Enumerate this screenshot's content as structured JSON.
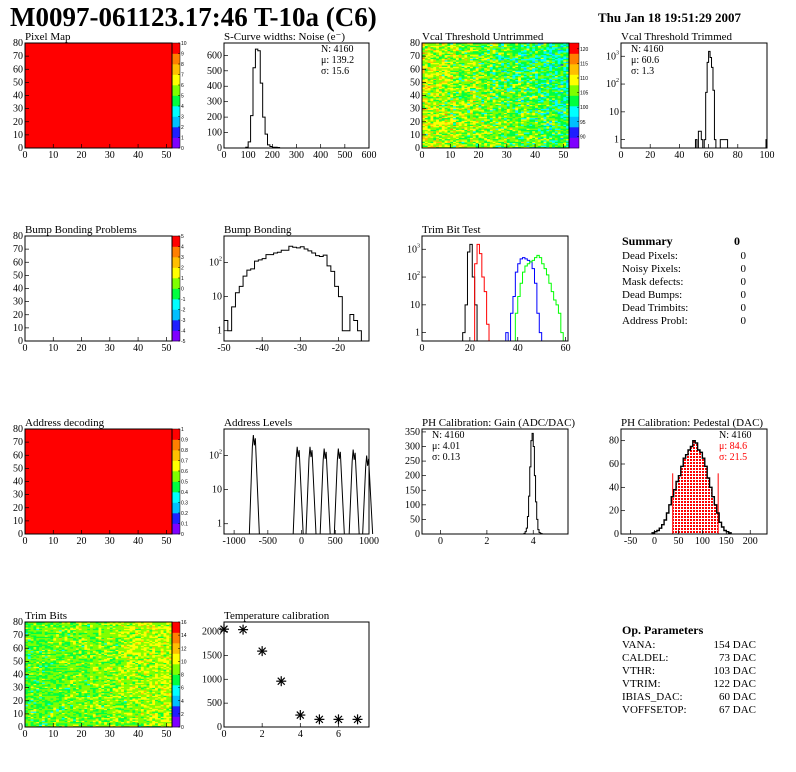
{
  "header": {
    "title": "M0097-061123.17:46 T-10a (C6)",
    "date": "Thu Jan 18 19:51:29 2007"
  },
  "summary": {
    "title": "Summary",
    "total": "0",
    "rows": [
      {
        "label": "Dead Pixels:",
        "value": "0"
      },
      {
        "label": "Noisy Pixels:",
        "value": "0"
      },
      {
        "label": "Mask defects:",
        "value": "0"
      },
      {
        "label": "Dead Bumps:",
        "value": "0"
      },
      {
        "label": "Dead Trimbits:",
        "value": "0"
      },
      {
        "label": "Address Probl:",
        "value": "0"
      }
    ]
  },
  "op_parameters": {
    "title": "Op. Parameters",
    "rows": [
      {
        "label": "VANA:",
        "value": "154 DAC"
      },
      {
        "label": "CALDEL:",
        "value": "73 DAC"
      },
      {
        "label": "VTHR:",
        "value": "103 DAC"
      },
      {
        "label": "VTRIM:",
        "value": "122 DAC"
      },
      {
        "label": "IBIAS_DAC:",
        "value": "60 DAC"
      },
      {
        "label": "VOFFSETOP:",
        "value": "67 DAC"
      }
    ]
  },
  "colors": {
    "palette": [
      "#7f00ff",
      "#1f1fff",
      "#00bfff",
      "#00ffff",
      "#00ff3f",
      "#7fff00",
      "#ffff00",
      "#ffbf00",
      "#ff7f00",
      "#ff0000"
    ],
    "red": "#ff0000",
    "green": "#00ff00",
    "blue": "#0000ff",
    "black": "#000000"
  },
  "chart_data": [
    {
      "id": "pixel-map",
      "type": "heatmap",
      "title": "Pixel Map",
      "xlim": [
        0,
        52
      ],
      "ylim": [
        0,
        80
      ],
      "xticks": [
        0,
        10,
        20,
        30,
        40,
        50
      ],
      "yticks": [
        0,
        10,
        20,
        30,
        40,
        50,
        60,
        70,
        80
      ],
      "zlim": [
        0,
        10
      ],
      "zticks": [
        0,
        1,
        2,
        3,
        4,
        5,
        6,
        7,
        8,
        9,
        10
      ],
      "fill": "uniform",
      "z_value": 10
    },
    {
      "id": "scurve-noise",
      "type": "bar",
      "title": "S-Curve widths: Noise (e⁻)",
      "xlim": [
        0,
        600
      ],
      "ylim": [
        0,
        680
      ],
      "xticks": [
        0,
        100,
        200,
        300,
        400,
        500,
        600
      ],
      "yticks": [
        0,
        100,
        200,
        300,
        400,
        500,
        600
      ],
      "bins": {
        "start": 90,
        "width": 10,
        "series": [
          {
            "color": "#000000",
            "values": [
              5,
              40,
              210,
              520,
              640,
              630,
              420,
              200,
              90,
              20,
              10,
              5,
              5,
              3
            ]
          }
        ]
      },
      "stats": {
        "pos": "top-right",
        "lines": [
          {
            "text": "N: 4160"
          },
          {
            "text": "μ: 139.2"
          },
          {
            "text": "σ: 15.6"
          }
        ]
      }
    },
    {
      "id": "vcal-untrimmed",
      "type": "heatmap",
      "title": "Vcal Threshold Untrimmed",
      "xlim": [
        0,
        52
      ],
      "ylim": [
        0,
        80
      ],
      "xticks": [
        0,
        10,
        20,
        30,
        40,
        50
      ],
      "yticks": [
        0,
        10,
        20,
        30,
        40,
        50,
        60,
        70,
        80
      ],
      "zlim": [
        86,
        122
      ],
      "zticks": [
        90,
        95,
        100,
        105,
        110,
        115,
        120
      ],
      "fill": "noise",
      "z_left": 108,
      "z_right": 100,
      "z_spread": 5
    },
    {
      "id": "vcal-trimmed",
      "type": "bar",
      "title": "Vcal Threshold Trimmed",
      "xlim": [
        0,
        100
      ],
      "ylog": true,
      "ylim": [
        0.5,
        3000
      ],
      "xticks": [
        0,
        20,
        40,
        60,
        80,
        100
      ],
      "yticks": [
        1,
        10,
        100,
        1000
      ],
      "bins": {
        "start": 50,
        "width": 1,
        "series": [
          {
            "color": "#000000",
            "values": [
              0,
              1,
              0,
              2,
              2,
              1,
              0,
              1,
              50,
              600,
              1500,
              900,
              400,
              60,
              1,
              0,
              0,
              0,
              1,
              1,
              1,
              1,
              1,
              0
            ]
          }
        ]
      },
      "extra_bins": [
        {
          "x": 100,
          "value": 1
        }
      ],
      "stats": {
        "pos": "top-left",
        "lines": [
          {
            "text": "N: 4160"
          },
          {
            "text": "μ: 60.6"
          },
          {
            "text": "σ:  1.3"
          }
        ]
      }
    },
    {
      "id": "bump-bonding-problems",
      "type": "heatmap",
      "title": "Bump Bonding Problems",
      "xlim": [
        0,
        52
      ],
      "ylim": [
        0,
        80
      ],
      "xticks": [
        0,
        10,
        20,
        30,
        40,
        50
      ],
      "yticks": [
        0,
        10,
        20,
        30,
        40,
        50,
        60,
        70,
        80
      ],
      "zlim": [
        -5,
        5
      ],
      "zticks": [
        -5,
        -4,
        -3,
        -2,
        -1,
        0,
        1,
        2,
        3,
        4,
        5
      ],
      "fill": "empty"
    },
    {
      "id": "bump-bonding",
      "type": "bar",
      "title": "Bump Bonding",
      "xlim": [
        -50,
        -12
      ],
      "ylog": true,
      "ylim": [
        0.5,
        600
      ],
      "xticks": [
        -50,
        -40,
        -30,
        -20
      ],
      "yticks": [
        1,
        10,
        100
      ],
      "bins": {
        "start": -50,
        "width": 1,
        "series": [
          {
            "color": "#000000",
            "values": [
              2,
              1,
              5,
              13,
              20,
              40,
              60,
              65,
              110,
              120,
              130,
              170,
              170,
              190,
              200,
              230,
              230,
              300,
              280,
              270,
              290,
              250,
              220,
              190,
              160,
              150,
              165,
              80,
              55,
              20,
              10,
              1,
              1,
              3,
              2,
              1
            ]
          }
        ]
      }
    },
    {
      "id": "trim-bit-test",
      "type": "bar",
      "title": "Trim Bit Test",
      "xlim": [
        0,
        61
      ],
      "ylog": true,
      "ylim": [
        0.5,
        3000
      ],
      "xticks": [
        0,
        20,
        40,
        60
      ],
      "yticks": [
        1,
        10,
        100,
        1000
      ],
      "bins": {
        "start": 17,
        "width": 1,
        "series": [
          {
            "color": "#000000",
            "values": [
              1,
              10,
              800,
              1500,
              100,
              10
            ]
          },
          {
            "color": "#ff0000",
            "values": [
              0,
              0,
              0,
              0,
              0,
              300,
              1500,
              700,
              100,
              30,
              2
            ]
          },
          {
            "color": "#0000ff",
            "values": [
              0,
              0,
              0,
              0,
              0,
              0,
              0,
              0,
              0,
              0,
              0,
              0,
              0,
              0,
              0,
              0,
              0,
              0,
              1,
              0,
              5,
              20,
              150,
              300,
              450,
              500,
              450,
              400,
              350,
              200,
              60,
              5,
              1
            ]
          },
          {
            "color": "#00ff00",
            "values": [
              0,
              0,
              0,
              0,
              0,
              0,
              0,
              0,
              0,
              0,
              0,
              0,
              0,
              0,
              0,
              0,
              0,
              0,
              0,
              0,
              0,
              0,
              5,
              20,
              60,
              150,
              250,
              300,
              350,
              400,
              500,
              600,
              500,
              300,
              200,
              120,
              60,
              30,
              15,
              10,
              5,
              1
            ]
          }
        ]
      }
    },
    {
      "id": "address-decoding",
      "type": "heatmap",
      "title": "Address decoding",
      "xlim": [
        0,
        52
      ],
      "ylim": [
        0,
        80
      ],
      "xticks": [
        0,
        10,
        20,
        30,
        40,
        50
      ],
      "yticks": [
        0,
        10,
        20,
        30,
        40,
        50,
        60,
        70,
        80
      ],
      "zlim": [
        0,
        1
      ],
      "zticks": [
        0,
        0.1,
        0.2,
        0.3,
        0.4,
        0.5,
        0.6,
        0.7,
        0.8,
        0.9,
        1
      ],
      "fill": "uniform",
      "z_value": 1
    },
    {
      "id": "address-levels",
      "type": "bar",
      "title": "Address Levels",
      "xlim": [
        -1150,
        1000
      ],
      "ylog": true,
      "ylim": [
        0.5,
        600
      ],
      "xticks": [
        -1000,
        -500,
        0,
        500,
        1000
      ],
      "yticks": [
        1,
        10,
        100
      ],
      "peaks": [
        {
          "x": -700,
          "value": 400
        },
        {
          "x": -50,
          "value": 180
        },
        {
          "x": 140,
          "value": 180
        },
        {
          "x": 350,
          "value": 160
        },
        {
          "x": 560,
          "value": 160
        },
        {
          "x": 780,
          "value": 150
        },
        {
          "x": 980,
          "value": 100
        }
      ]
    },
    {
      "id": "ph-gain",
      "type": "bar",
      "title": "PH Calibration: Gain (ADC/DAC)",
      "xlim": [
        -0.8,
        5.5
      ],
      "ylim": [
        0,
        360
      ],
      "xticks": [
        0,
        2,
        4
      ],
      "yticks": [
        0,
        50,
        100,
        150,
        200,
        250,
        300,
        350
      ],
      "bins": {
        "start": 3.6,
        "width": 0.05,
        "series": [
          {
            "color": "#000000",
            "values": [
              2,
              8,
              20,
              60,
              130,
              230,
              320,
              345,
              300,
              200,
              110,
              50,
              15,
              5,
              2,
              1,
              0,
              0
            ]
          }
        ]
      },
      "stats": {
        "pos": "top-left",
        "lines": [
          {
            "text": "N: 4160"
          },
          {
            "text": "μ: 4.01"
          },
          {
            "text": "σ: 0.13"
          }
        ]
      }
    },
    {
      "id": "ph-pedestal",
      "type": "bar",
      "title": "PH Calibration: Pedestal (DAC)",
      "xlim": [
        -70,
        235
      ],
      "ylim": [
        0,
        90
      ],
      "xticks": [
        -50,
        0,
        50,
        100,
        150,
        200
      ],
      "yticks": [
        0,
        20,
        40,
        60,
        80
      ],
      "bins": {
        "start": -5,
        "width": 5,
        "series": [
          {
            "color": "#000000",
            "values": [
              1,
              2,
              3,
              5,
              8,
              12,
              18,
              25,
              32,
              38,
              45,
              50,
              58,
              65,
              68,
              72,
              75,
              80,
              78,
              72,
              70,
              65,
              58,
              48,
              40,
              32,
              25,
              18,
              10,
              6,
              3,
              2,
              1
            ]
          }
        ]
      },
      "fill_range": [
        38,
        133
      ],
      "fill_color": "#ff0000",
      "cut_lines": [
        {
          "x": 38,
          "value": 52
        },
        {
          "x": 133,
          "value": 52
        }
      ],
      "stats": {
        "pos": "top-right",
        "lines": [
          {
            "text": "N: 4160"
          },
          {
            "text": "μ: 84.6",
            "color": "#ff0000"
          },
          {
            "text": "σ: 21.5",
            "color": "#ff0000"
          }
        ]
      }
    },
    {
      "id": "trim-bits",
      "type": "heatmap",
      "title": "Trim Bits",
      "xlim": [
        0,
        52
      ],
      "ylim": [
        0,
        80
      ],
      "xticks": [
        0,
        10,
        20,
        30,
        40,
        50
      ],
      "yticks": [
        0,
        10,
        20,
        30,
        40,
        50,
        60,
        70,
        80
      ],
      "zlim": [
        0,
        16
      ],
      "zticks": [
        0,
        2,
        4,
        6,
        8,
        10,
        12,
        14,
        16
      ],
      "fill": "noise",
      "z_left": 8,
      "z_right": 10,
      "z_spread": 1.6
    },
    {
      "id": "temperature-calibration",
      "type": "scatter",
      "title": "Temperature calibration",
      "xlim": [
        0,
        7.6
      ],
      "ylim": [
        0,
        2200
      ],
      "xticks": [
        0,
        2,
        4,
        6
      ],
      "yticks": [
        0,
        500,
        1000,
        1500,
        2000
      ],
      "x": [
        0,
        1,
        2,
        3,
        4,
        5,
        6,
        7
      ],
      "y": [
        2050,
        2040,
        1590,
        960,
        250,
        160,
        160,
        160
      ]
    }
  ]
}
